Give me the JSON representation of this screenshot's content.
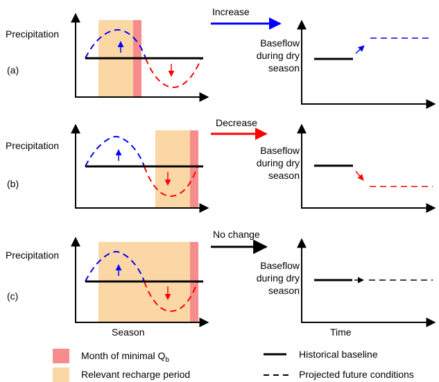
{
  "labels": {
    "y_axis_left": "Precipitation",
    "x_axis_left": "Season",
    "y_axis_right_line1": "Baseflow",
    "y_axis_right_line2": "during dry",
    "y_axis_right_line3": "season",
    "x_axis_right": "Time"
  },
  "panels": [
    {
      "id": "a",
      "label": "(a)",
      "change": "Increase",
      "change_color": "#0000ff"
    },
    {
      "id": "b",
      "label": "(b)",
      "change": "Decrease",
      "change_color": "#ff0000"
    },
    {
      "id": "c",
      "label": "(c)",
      "change": "No change",
      "change_color": "#000000"
    }
  ],
  "legend": {
    "minimal_month": "Month of minimal Q",
    "minimal_month_subscript": "b",
    "recharge_period": "Relevant recharge period",
    "historical": "Historical baseline",
    "projected": "Projected future conditions"
  },
  "colors": {
    "recharge_fill": "#fbd7a6",
    "minimal_fill": "#f78c8c",
    "wet_curve": "#0000ff",
    "dry_curve": "#ff0000",
    "baseline": "#000000"
  }
}
